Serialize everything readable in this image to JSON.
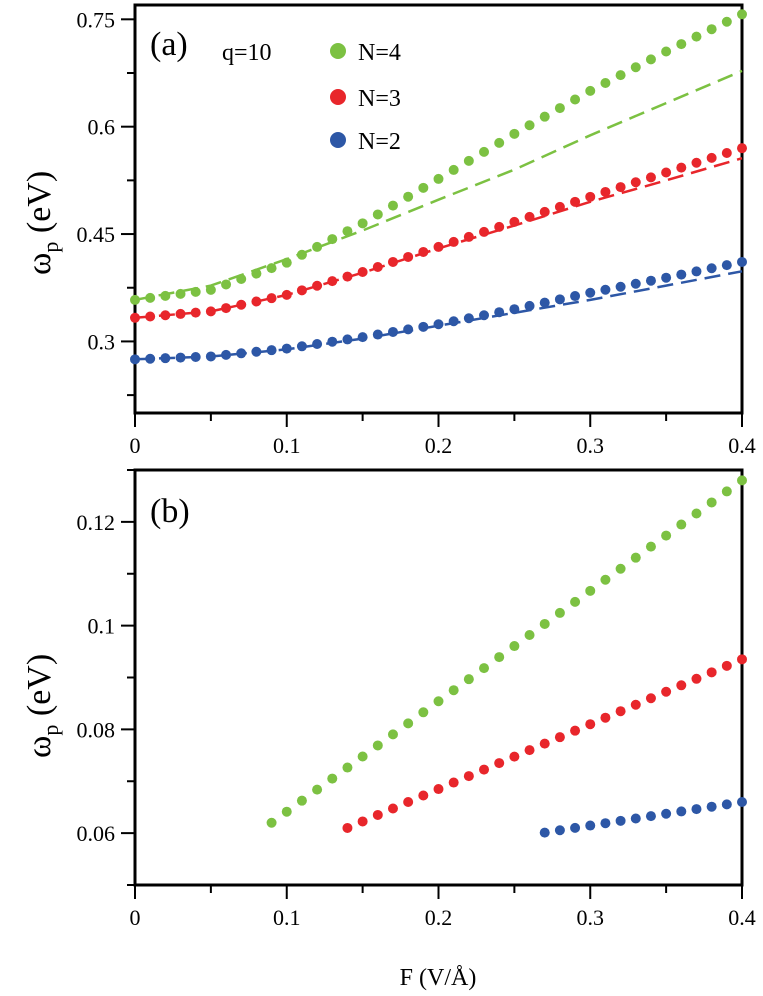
{
  "colors": {
    "N4": "#7cc142",
    "N3": "#e8262b",
    "N2": "#2d57a6"
  },
  "xlabel": "F (V/Å)",
  "chart_data": [
    {
      "type": "scatter",
      "panel": "(a)",
      "ylabel_main": "ω",
      "ylabel_sub": "p",
      "ylabel_unit": " (eV)",
      "xlim": [
        0,
        0.4
      ],
      "ylim": [
        0.2,
        0.77
      ],
      "xticks": [
        "0",
        "0.1",
        "0.2",
        "0.3",
        "0.4"
      ],
      "yticks": [
        "0.3",
        "0.45",
        "0.6",
        "0.75"
      ],
      "ytick_values": [
        0.3,
        0.45,
        0.6,
        0.75
      ],
      "legend_title": "q=10",
      "legend_entries": [
        "N=4",
        "N=3",
        "N=2"
      ],
      "series": [
        {
          "name": "N=4",
          "color": "N4",
          "points": [
            [
              0,
              0.358
            ],
            [
              0.05,
              0.372
            ],
            [
              0.1,
              0.41
            ],
            [
              0.15,
              0.465
            ],
            [
              0.2,
              0.527
            ],
            [
              0.25,
              0.59
            ],
            [
              0.3,
              0.65
            ],
            [
              0.35,
              0.705
            ],
            [
              0.4,
              0.757
            ]
          ],
          "dashed": [
            [
              0,
              0.358
            ],
            [
              0.05,
              0.378
            ],
            [
              0.1,
              0.415
            ],
            [
              0.15,
              0.455
            ],
            [
              0.2,
              0.498
            ],
            [
              0.25,
              0.54
            ],
            [
              0.3,
              0.588
            ],
            [
              0.35,
              0.633
            ],
            [
              0.4,
              0.678
            ]
          ]
        },
        {
          "name": "N=3",
          "color": "N3",
          "points": [
            [
              0,
              0.333
            ],
            [
              0.05,
              0.342
            ],
            [
              0.1,
              0.365
            ],
            [
              0.15,
              0.397
            ],
            [
              0.2,
              0.432
            ],
            [
              0.25,
              0.467
            ],
            [
              0.3,
              0.502
            ],
            [
              0.35,
              0.536
            ],
            [
              0.4,
              0.57
            ]
          ],
          "dashed": [
            [
              0,
              0.333
            ],
            [
              0.05,
              0.342
            ],
            [
              0.1,
              0.365
            ],
            [
              0.15,
              0.396
            ],
            [
              0.2,
              0.43
            ],
            [
              0.25,
              0.462
            ],
            [
              0.3,
              0.495
            ],
            [
              0.35,
              0.525
            ],
            [
              0.4,
              0.556
            ]
          ]
        },
        {
          "name": "N=2",
          "color": "N2",
          "points": [
            [
              0,
              0.275
            ],
            [
              0.05,
              0.279
            ],
            [
              0.1,
              0.29
            ],
            [
              0.15,
              0.306
            ],
            [
              0.2,
              0.324
            ],
            [
              0.25,
              0.345
            ],
            [
              0.3,
              0.368
            ],
            [
              0.35,
              0.389
            ],
            [
              0.4,
              0.411
            ]
          ],
          "dashed": [
            [
              0,
              0.275
            ],
            [
              0.05,
              0.279
            ],
            [
              0.1,
              0.289
            ],
            [
              0.15,
              0.304
            ],
            [
              0.2,
              0.322
            ],
            [
              0.25,
              0.34
            ],
            [
              0.3,
              0.358
            ],
            [
              0.35,
              0.378
            ],
            [
              0.4,
              0.398
            ]
          ]
        }
      ]
    },
    {
      "type": "scatter",
      "panel": "(b)",
      "ylabel_main": "ω",
      "ylabel_sub": "p",
      "ylabel_unit": " (eV)",
      "xlim": [
        0,
        0.4
      ],
      "ylim": [
        0.05,
        0.13
      ],
      "xticks": [
        "0",
        "0.1",
        "0.2",
        "0.3",
        "0.4"
      ],
      "yticks": [
        "0.06",
        "0.08",
        "0.1",
        "0.12"
      ],
      "ytick_values": [
        0.06,
        0.08,
        0.1,
        0.12
      ],
      "series": [
        {
          "name": "N=4",
          "color": "N4",
          "x0": 0.09,
          "y0": 0.062,
          "x1": 0.4,
          "y1": 0.128
        },
        {
          "name": "N=3",
          "color": "N3",
          "x0": 0.14,
          "y0": 0.061,
          "x1": 0.4,
          "y1": 0.0935
        },
        {
          "name": "N=2",
          "color": "N2",
          "x0": 0.27,
          "y0": 0.0601,
          "x1": 0.4,
          "y1": 0.066
        }
      ]
    }
  ]
}
